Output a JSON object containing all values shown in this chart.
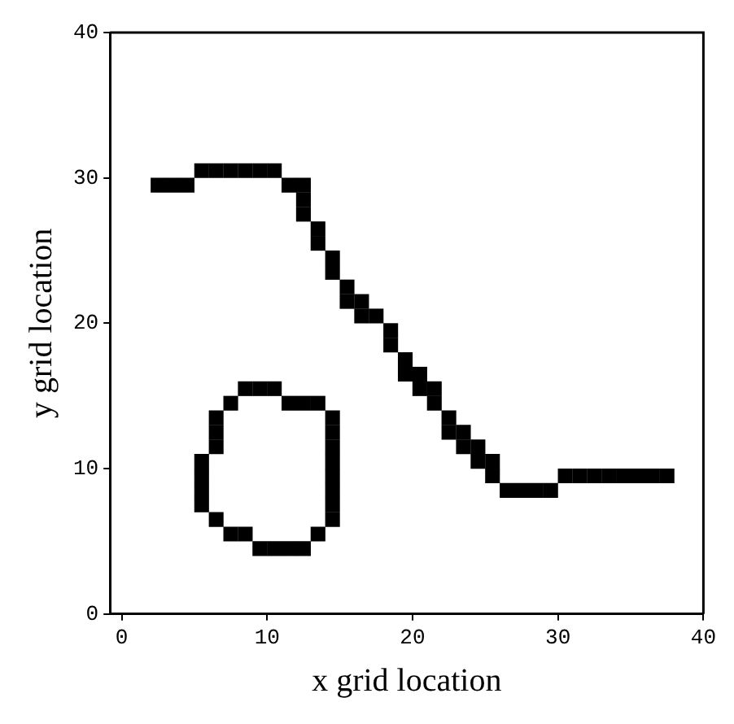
{
  "chart_data": {
    "type": "scatter",
    "xlabel": "x grid location",
    "ylabel": "y grid location",
    "marker": "square",
    "grid": false,
    "legend": false,
    "xlim": [
      -0.8,
      40
    ],
    "ylim": [
      0,
      40
    ],
    "xticks": [
      0,
      10,
      20,
      30,
      40
    ],
    "yticks": [
      0,
      10,
      20,
      30,
      40
    ],
    "series": [
      {
        "color": "#000000",
        "x": [
          2.5,
          3.5,
          4.5,
          5.5,
          6.5,
          7.5,
          8.5,
          9.5,
          10.5,
          11.5,
          12.5,
          12.5,
          12.5,
          13.5,
          13.5,
          14.5,
          14.5,
          15.5,
          15.5,
          16.5,
          16.5,
          17.5,
          18.5,
          18.5,
          19.5,
          19.5,
          20.5,
          20.5,
          21.5,
          21.5,
          22.5,
          22.5,
          23.5,
          23.5,
          24.5,
          24.5,
          25.5,
          25.5,
          26.5,
          27.5,
          28.5,
          29.5,
          30.5,
          31.5,
          32.5,
          33.5,
          34.5,
          35.5,
          36.5,
          37.5,
          8.5,
          9.5,
          10.5,
          11.5,
          12.5,
          13.5,
          14.5,
          14.5,
          14.5,
          14.5,
          14.5,
          14.5,
          14.5,
          14.5,
          13.5,
          9.5,
          10.5,
          11.5,
          12.5,
          7.5,
          8.5,
          6.5,
          5.5,
          5.5,
          5.5,
          5.5,
          6.5,
          6.5,
          6.5,
          7.5
        ],
        "values": [
          29.5,
          29.5,
          29.5,
          30.5,
          30.5,
          30.5,
          30.5,
          30.5,
          30.5,
          29.5,
          29.5,
          28.5,
          27.5,
          26.5,
          25.5,
          24.5,
          23.5,
          22.5,
          21.5,
          21.5,
          20.5,
          20.5,
          19.5,
          18.5,
          17.5,
          16.5,
          16.5,
          15.5,
          15.5,
          14.5,
          13.5,
          12.5,
          12.5,
          11.5,
          11.5,
          10.5,
          10.5,
          9.5,
          8.5,
          8.5,
          8.5,
          8.5,
          9.5,
          9.5,
          9.5,
          9.5,
          9.5,
          9.5,
          9.5,
          9.5,
          15.5,
          15.5,
          15.5,
          14.5,
          14.5,
          14.5,
          13.5,
          12.5,
          11.5,
          10.5,
          9.5,
          8.5,
          7.5,
          6.5,
          5.5,
          4.5,
          4.5,
          4.5,
          4.5,
          5.5,
          5.5,
          6.5,
          7.5,
          8.5,
          9.5,
          10.5,
          11.5,
          12.5,
          13.5,
          14.5
        ]
      }
    ]
  }
}
